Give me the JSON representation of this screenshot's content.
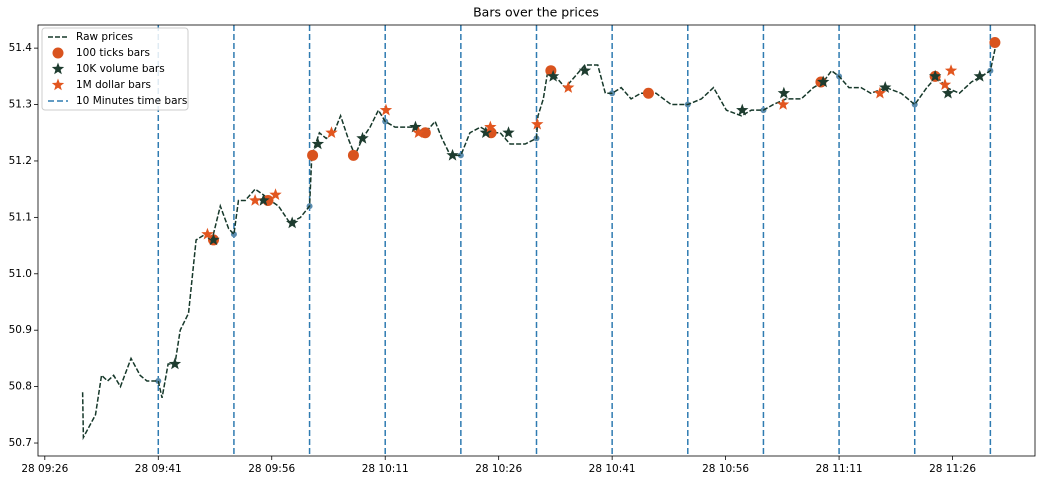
{
  "chart_data": {
    "type": "line",
    "title": "Bars over the prices",
    "xlim": [
      565.1,
      696.9
    ],
    "ylim": [
      50.677,
      51.441
    ],
    "xticks": [
      {
        "value": 566,
        "label": "28 09:26"
      },
      {
        "value": 581,
        "label": "28 09:41"
      },
      {
        "value": 596,
        "label": "28 09:56"
      },
      {
        "value": 611,
        "label": "28 10:11"
      },
      {
        "value": 626,
        "label": "28 10:26"
      },
      {
        "value": 641,
        "label": "28 10:41"
      },
      {
        "value": 656,
        "label": "28 10:56"
      },
      {
        "value": 671,
        "label": "28 11:11"
      },
      {
        "value": 686,
        "label": "28 11:26"
      }
    ],
    "yticks": [
      50.7,
      50.8,
      50.9,
      {
        "value": 51,
        "label": "51.0"
      },
      51.1,
      51.2,
      51.3,
      51.4
    ],
    "legend": "upper left",
    "series": [
      {
        "name": "Raw prices",
        "color": "#16382a",
        "style": "dashed-line",
        "x": [
          571.0,
          571.1,
          572.7,
          573.5,
          574.3,
          575.1,
          576.0,
          577.4,
          578.6,
          579.5,
          581.0,
          581.5,
          582.3,
          583.2,
          583.9,
          585.0,
          586.0,
          587.2,
          588.1,
          589.2,
          590.3,
          591.0,
          591.6,
          592.5,
          593.8,
          594.9,
          595.8,
          596.9,
          598.4,
          599.8,
          601.0,
          601.3,
          602.3,
          603.2,
          604.2,
          605.1,
          606.1,
          607.0,
          608.0,
          609.0,
          610.1,
          611.0,
          612.3,
          613.6,
          615.1,
          616.3,
          617.6,
          618.5,
          619.6,
          621.0,
          622.2,
          623.6,
          624.9,
          626.2,
          627.5,
          629.5,
          631.0,
          631.2,
          631.9,
          632.5,
          633.5,
          634.8,
          636.1,
          637.4,
          639.1,
          640.1,
          641.0,
          642.2,
          643.5,
          644.8,
          646.8,
          648.8,
          651.0,
          652.8,
          654.4,
          656.1,
          658.1,
          659.4,
          661.0,
          662.3,
          664.0,
          666.0,
          667.6,
          668.9,
          670.0,
          671.0,
          672.3,
          673.9,
          675.2,
          677.2,
          679.2,
          681.0,
          682.6,
          683.9,
          685.2,
          686.9,
          688.5,
          689.8,
          691.0,
          691.8
        ],
        "values": [
          50.79,
          50.71,
          50.75,
          50.82,
          50.81,
          50.82,
          50.8,
          50.85,
          50.82,
          50.81,
          50.81,
          50.78,
          50.84,
          50.84,
          50.9,
          50.93,
          51.06,
          51.07,
          51.06,
          51.12,
          51.08,
          51.07,
          51.13,
          51.13,
          51.15,
          51.14,
          51.13,
          51.12,
          51.09,
          51.1,
          51.12,
          51.21,
          51.25,
          51.24,
          51.25,
          51.28,
          51.24,
          51.21,
          51.24,
          51.26,
          51.29,
          51.27,
          51.26,
          51.26,
          51.26,
          51.25,
          51.27,
          51.24,
          51.21,
          51.21,
          51.25,
          51.26,
          51.25,
          51.25,
          51.23,
          51.23,
          51.24,
          51.28,
          51.31,
          51.36,
          51.35,
          51.33,
          51.35,
          51.37,
          51.37,
          51.32,
          51.32,
          51.33,
          51.31,
          51.32,
          51.32,
          51.3,
          51.3,
          51.31,
          51.33,
          51.29,
          51.28,
          51.29,
          51.29,
          51.3,
          51.31,
          51.31,
          51.33,
          51.34,
          51.36,
          51.35,
          51.33,
          51.33,
          51.32,
          51.33,
          51.32,
          51.3,
          51.33,
          51.35,
          51.33,
          51.32,
          51.34,
          51.35,
          51.36,
          51.41
        ]
      },
      {
        "name": "100 ticks bars",
        "color": "#d9531e",
        "style": "circle",
        "x": [
          588.3,
          595.5,
          601.4,
          606.8,
          616.3,
          625.0,
          632.9,
          645.8,
          668.6,
          683.7,
          691.6
        ],
        "values": [
          51.06,
          51.13,
          51.21,
          51.21,
          51.25,
          51.25,
          51.36,
          51.32,
          51.34,
          51.35,
          51.41
        ]
      },
      {
        "name": "10K volume bars",
        "color": "#1e3c2f",
        "style": "star",
        "x": [
          583.2,
          588.3,
          594.9,
          598.7,
          602.1,
          608.0,
          615.0,
          619.9,
          624.3,
          627.3,
          633.2,
          637.4,
          658.2,
          663.7,
          668.9,
          677.1,
          683.7,
          685.4,
          689.6
        ],
        "values": [
          50.84,
          51.06,
          51.13,
          51.09,
          51.23,
          51.24,
          51.26,
          51.21,
          51.25,
          51.25,
          51.35,
          51.36,
          51.29,
          51.32,
          51.34,
          51.33,
          51.35,
          51.32,
          51.35
        ]
      },
      {
        "name": "1M dollar bars",
        "color": "#e2561f",
        "style": "star",
        "x": [
          587.5,
          593.8,
          596.5,
          603.9,
          611.1,
          615.4,
          624.9,
          631.1,
          635.2,
          663.6,
          676.4,
          685.0,
          685.8
        ],
        "values": [
          51.07,
          51.13,
          51.14,
          51.25,
          51.29,
          51.25,
          51.26,
          51.265,
          51.33,
          51.3,
          51.32,
          51.335,
          51.36
        ]
      },
      {
        "name": "10 Minutes time bars",
        "color": "#2f7bb1",
        "style": "vline-dot",
        "x": [
          581,
          591,
          601,
          611,
          621,
          631,
          641,
          651,
          661,
          671,
          681,
          691
        ],
        "values": [
          50.81,
          51.07,
          51.12,
          51.27,
          51.21,
          51.24,
          51.32,
          51.3,
          51.29,
          51.35,
          51.3,
          51.36
        ]
      }
    ]
  }
}
